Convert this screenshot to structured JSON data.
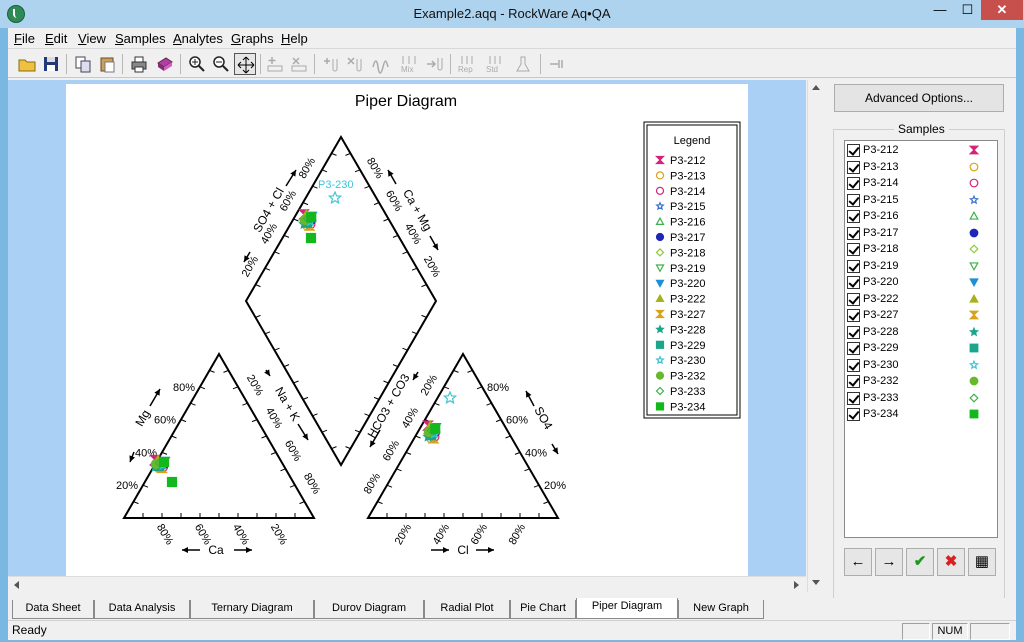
{
  "window": {
    "title": "Example2.aqq - RockWare Aq•QA",
    "min": "—",
    "max": "☐",
    "close": "✕"
  },
  "menu": [
    {
      "label": "File",
      "key": "F"
    },
    {
      "label": "Edit",
      "key": "E"
    },
    {
      "label": "View",
      "key": "V"
    },
    {
      "label": "Samples",
      "key": "S"
    },
    {
      "label": "Analytes",
      "key": "A"
    },
    {
      "label": "Graphs",
      "key": "G"
    },
    {
      "label": "Help",
      "key": "H"
    }
  ],
  "toolbar": {
    "icons": [
      "open-folder",
      "save",
      "copy",
      "paste",
      "print",
      "export",
      "zoom-in",
      "zoom-out",
      "pan",
      "add-row",
      "delete-row",
      "add-sample",
      "delete-sample",
      "wave",
      "mix",
      "import",
      "replicate",
      "standard",
      "unit"
    ],
    "mix_label": "Mix",
    "rep_label": "Rep",
    "std_label": "Std"
  },
  "sidepanel": {
    "advanced_label": "Advanced Options...",
    "samples_label": "Samples",
    "buttons": [
      "←",
      "→",
      "✔",
      "✖",
      "▦"
    ]
  },
  "diagram": {
    "title": "Piper Diagram",
    "legend_title": "Legend",
    "cation_labels": {
      "mg": "Mg",
      "ca": "Ca",
      "na_k": "Na + K"
    },
    "anion_labels": {
      "so4": "SO4",
      "cl": "Cl",
      "hco3_co3": "HCO3 + CO3"
    },
    "diamond_labels": {
      "so4_cl": "SO4 + Cl",
      "ca_mg": "Ca + Mg"
    },
    "ticks": [
      "20%",
      "40%",
      "60%",
      "80%"
    ],
    "annotation": "P3-230"
  },
  "samples": [
    {
      "name": "P3-212",
      "symbol": "hourglass",
      "color": "#d4237a",
      "fill": true
    },
    {
      "name": "P3-213",
      "symbol": "circle",
      "color": "#d9a21c",
      "fill": false
    },
    {
      "name": "P3-214",
      "symbol": "circle",
      "color": "#d4237a",
      "fill": false
    },
    {
      "name": "P3-215",
      "symbol": "star",
      "color": "#3c74d6",
      "fill": false
    },
    {
      "name": "P3-216",
      "symbol": "triangle",
      "color": "#3fb04a",
      "fill": false
    },
    {
      "name": "P3-217",
      "symbol": "circle",
      "color": "#1f27b8",
      "fill": true
    },
    {
      "name": "P3-218",
      "symbol": "diamond",
      "color": "#90c83c",
      "fill": false
    },
    {
      "name": "P3-219",
      "symbol": "triangle-down",
      "color": "#3fb04a",
      "fill": false
    },
    {
      "name": "P3-220",
      "symbol": "triangle-down",
      "color": "#1f8fd6",
      "fill": true
    },
    {
      "name": "P3-222",
      "symbol": "triangle",
      "color": "#a8b01a",
      "fill": true
    },
    {
      "name": "P3-227",
      "symbol": "hourglass",
      "color": "#d9a21c",
      "fill": true
    },
    {
      "name": "P3-228",
      "symbol": "star",
      "color": "#1ba58a",
      "fill": true
    },
    {
      "name": "P3-229",
      "symbol": "square",
      "color": "#1ba58a",
      "fill": true
    },
    {
      "name": "P3-230",
      "symbol": "star",
      "color": "#3fc4d6",
      "fill": false
    },
    {
      "name": "P3-232",
      "symbol": "circle",
      "color": "#68b82c",
      "fill": true
    },
    {
      "name": "P3-233",
      "symbol": "diamond",
      "color": "#3fb04a",
      "fill": false
    },
    {
      "name": "P3-234",
      "symbol": "square",
      "color": "#12b81c",
      "fill": true
    }
  ],
  "tabs": [
    "Data Sheet",
    "Data Analysis",
    "Ternary Diagram",
    "Durov Diagram",
    "Radial Plot",
    "Pie Chart",
    "Piper Diagram",
    "New Graph"
  ],
  "active_tab": "Piper Diagram",
  "status": {
    "text": "Ready",
    "num": "NUM"
  }
}
